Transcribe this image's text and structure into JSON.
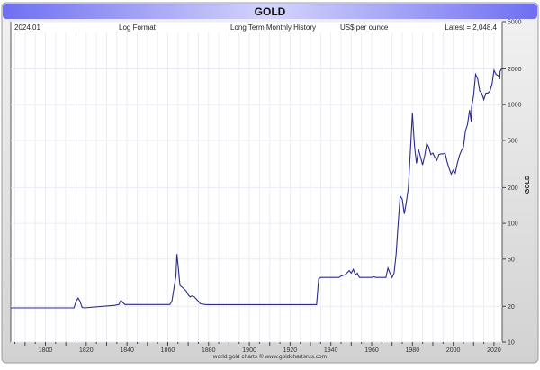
{
  "chart_data": {
    "type": "line",
    "title": "GOLD",
    "header_items": [
      "2024.01",
      "Log Format",
      "Long Term Monthly History",
      "US$ per ounce",
      "Latest = 2,048.4"
    ],
    "ylabel": "GOLD",
    "footer": "world gold charts © www.goldchartsrus.com",
    "y_scale": "log",
    "ylim": [
      10,
      5000
    ],
    "xlim": [
      1783,
      2024
    ],
    "x_ticks": [
      1800,
      1820,
      1840,
      1860,
      1880,
      1900,
      1920,
      1940,
      1960,
      1980,
      2000,
      2020
    ],
    "y_ticks": [
      5000,
      2000,
      1000,
      500,
      200,
      100,
      50,
      20,
      10
    ],
    "grid": true,
    "colors": {
      "line": "#2b2b8a",
      "header": "#7b7bf0",
      "frame": "#d9d9d9"
    },
    "series": [
      {
        "points": [
          [
            1783,
            19.4
          ],
          [
            1814,
            19.4
          ],
          [
            1815,
            22
          ],
          [
            1816,
            23.5
          ],
          [
            1817,
            22
          ],
          [
            1818,
            19.6
          ],
          [
            1819,
            19.4
          ],
          [
            1834,
            20.4
          ],
          [
            1836,
            20.7
          ],
          [
            1837,
            22.5
          ],
          [
            1838,
            21.5
          ],
          [
            1839,
            20.7
          ],
          [
            1861,
            20.7
          ],
          [
            1862,
            22
          ],
          [
            1863,
            28
          ],
          [
            1864,
            36
          ],
          [
            1864.5,
            55
          ],
          [
            1865,
            45
          ],
          [
            1866,
            30
          ],
          [
            1867,
            29
          ],
          [
            1868,
            28
          ],
          [
            1869,
            27
          ],
          [
            1870,
            25
          ],
          [
            1871,
            24
          ],
          [
            1872,
            24.5
          ],
          [
            1873,
            24
          ],
          [
            1874,
            23
          ],
          [
            1875,
            22
          ],
          [
            1876,
            21
          ],
          [
            1879,
            20.67
          ],
          [
            1933,
            20.67
          ],
          [
            1934,
            34
          ],
          [
            1935,
            35
          ],
          [
            1944,
            35
          ],
          [
            1945,
            36
          ],
          [
            1947,
            37
          ],
          [
            1949,
            40
          ],
          [
            1950,
            38
          ],
          [
            1951,
            41
          ],
          [
            1952,
            37
          ],
          [
            1953,
            38
          ],
          [
            1954,
            35
          ],
          [
            1960,
            35
          ],
          [
            1961,
            35.5
          ],
          [
            1962,
            35
          ],
          [
            1967,
            35
          ],
          [
            1968,
            42
          ],
          [
            1969,
            38
          ],
          [
            1970,
            35
          ],
          [
            1971,
            38
          ],
          [
            1972,
            55
          ],
          [
            1973,
            100
          ],
          [
            1974,
            170
          ],
          [
            1975,
            160
          ],
          [
            1976,
            120
          ],
          [
            1977,
            150
          ],
          [
            1978,
            200
          ],
          [
            1979,
            400
          ],
          [
            1980,
            850
          ],
          [
            1980.5,
            620
          ],
          [
            1981,
            450
          ],
          [
            1982,
            320
          ],
          [
            1983,
            420
          ],
          [
            1984,
            360
          ],
          [
            1985,
            310
          ],
          [
            1986,
            370
          ],
          [
            1987,
            470
          ],
          [
            1988,
            440
          ],
          [
            1989,
            380
          ],
          [
            1990,
            390
          ],
          [
            1991,
            360
          ],
          [
            1992,
            340
          ],
          [
            1993,
            380
          ],
          [
            1994,
            385
          ],
          [
            1995,
            385
          ],
          [
            1996,
            390
          ],
          [
            1997,
            330
          ],
          [
            1998,
            290
          ],
          [
            1999,
            260
          ],
          [
            2000,
            280
          ],
          [
            2001,
            265
          ],
          [
            2002,
            320
          ],
          [
            2003,
            370
          ],
          [
            2004,
            410
          ],
          [
            2005,
            440
          ],
          [
            2006,
            600
          ],
          [
            2007,
            680
          ],
          [
            2008,
            900
          ],
          [
            2008.8,
            720
          ],
          [
            2009,
            950
          ],
          [
            2010,
            1200
          ],
          [
            2011,
            1800
          ],
          [
            2012,
            1650
          ],
          [
            2013,
            1300
          ],
          [
            2014,
            1250
          ],
          [
            2015,
            1100
          ],
          [
            2016,
            1250
          ],
          [
            2017,
            1250
          ],
          [
            2018,
            1300
          ],
          [
            2019,
            1480
          ],
          [
            2020,
            1950
          ],
          [
            2021,
            1800
          ],
          [
            2022,
            1750
          ],
          [
            2022.8,
            1640
          ],
          [
            2023,
            1900
          ],
          [
            2024,
            2048.4
          ]
        ]
      }
    ]
  }
}
